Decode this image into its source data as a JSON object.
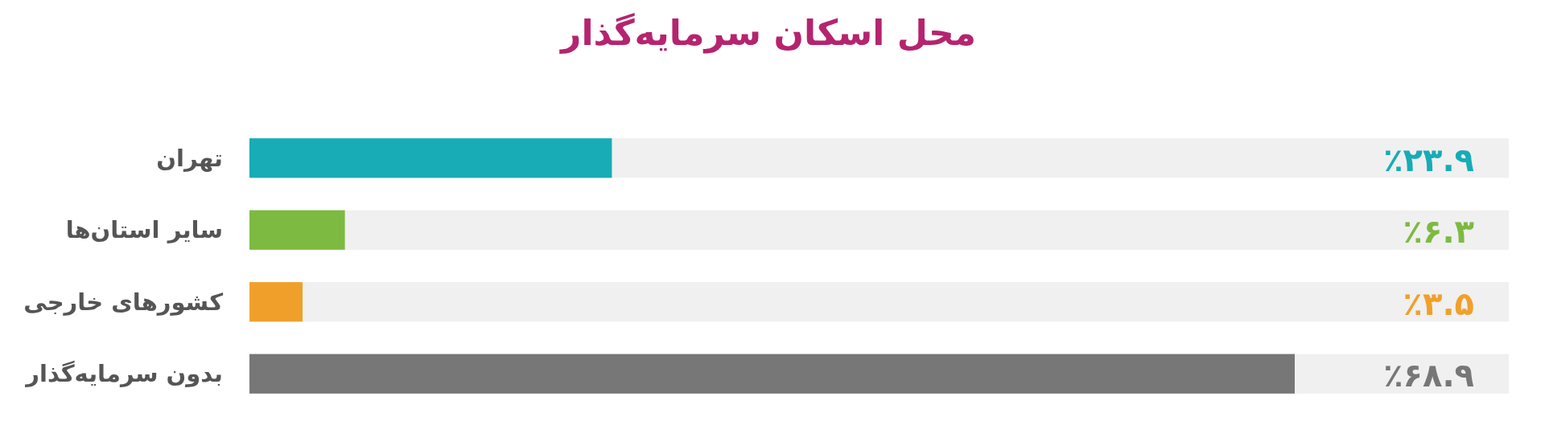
{
  "chart_data": {
    "type": "bar",
    "orientation": "horizontal",
    "title": "محل اسکان سرمایه‌گذار",
    "categories": [
      "تهران",
      "سایر استان‌ها",
      "کشورهای خارجی",
      "بدون سرمایه‌گذار"
    ],
    "values": [
      23.9,
      6.3,
      3.5,
      68.9
    ],
    "colors": [
      "#17acb6",
      "#7dba41",
      "#f0a02a",
      "#777777"
    ],
    "value_labels": [
      "٪۲۳.۹",
      "٪۶.۳",
      "٪۳.۵",
      "٪۶۸.۹"
    ],
    "xlim": [
      0,
      83
    ],
    "tick_labels": "y"
  }
}
